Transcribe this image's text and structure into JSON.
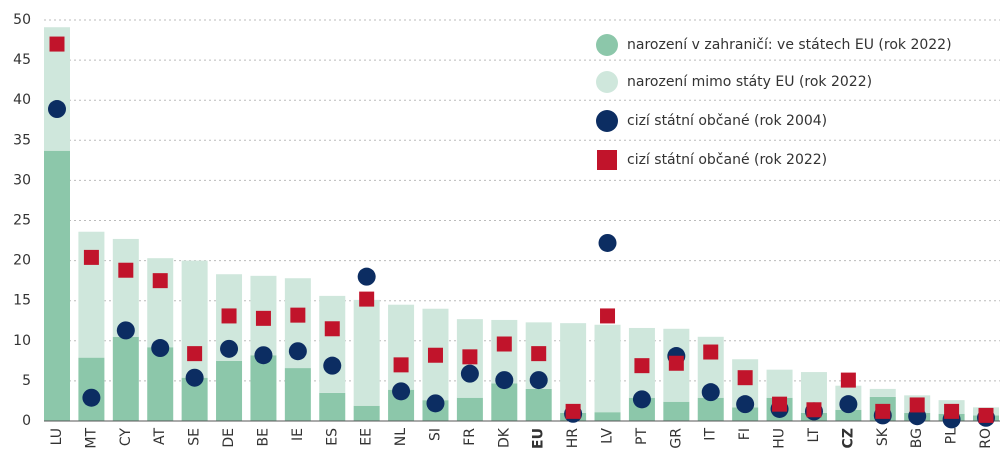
{
  "chart_data": {
    "type": "bar",
    "stacked": true,
    "categories": [
      "LU",
      "MT",
      "CY",
      "AT",
      "SE",
      "DE",
      "BE",
      "IE",
      "ES",
      "EE",
      "NL",
      "SI",
      "FR",
      "DK",
      "EU",
      "HR",
      "LV",
      "PT",
      "GR",
      "IT",
      "FI",
      "HU",
      "LT",
      "CZ",
      "SK",
      "BG",
      "PL",
      "RO"
    ],
    "highlight_indices": [
      14,
      23
    ],
    "series": [
      {
        "name": "narození v zahraničí: ve státech EU (rok 2022)",
        "kind": "bar",
        "color": "#8cc7aa",
        "values": [
          33.7,
          7.9,
          10.5,
          9.2,
          5.4,
          7.5,
          8.2,
          6.6,
          3.5,
          1.9,
          3.9,
          2.6,
          2.9,
          4.7,
          4.0,
          1.0,
          1.1,
          2.9,
          2.4,
          2.9,
          1.7,
          2.9,
          1.0,
          1.4,
          3.0,
          1.0,
          0.9,
          0.7
        ]
      },
      {
        "name": "narození mimo státy EU (rok 2022)",
        "kind": "bar",
        "color": "#cfe7dc",
        "values": [
          15.4,
          15.7,
          12.2,
          11.1,
          14.6,
          10.8,
          9.9,
          11.2,
          12.1,
          13.2,
          10.6,
          11.4,
          9.8,
          7.9,
          8.3,
          11.2,
          10.9,
          8.7,
          9.1,
          7.6,
          6.0,
          3.5,
          5.1,
          3.0,
          1.0,
          2.2,
          1.7,
          1.0
        ]
      },
      {
        "name": "cizí státní občané (rok 2004)",
        "kind": "circle",
        "color": "#0c2d62",
        "values": [
          38.9,
          2.9,
          11.3,
          9.1,
          5.4,
          9.0,
          8.2,
          8.7,
          6.9,
          18.0,
          3.7,
          2.2,
          5.9,
          5.1,
          5.1,
          0.9,
          22.2,
          2.7,
          8.1,
          3.6,
          2.1,
          1.5,
          1.2,
          2.1,
          0.7,
          0.6,
          0.2,
          0.4
        ]
      },
      {
        "name": "cizí státní občané (rok 2022)",
        "kind": "square",
        "color": "#c1142b",
        "values": [
          47.0,
          20.4,
          18.8,
          17.5,
          8.4,
          13.1,
          12.8,
          13.2,
          11.5,
          15.2,
          7.0,
          8.2,
          8.0,
          9.6,
          8.4,
          1.2,
          13.1,
          6.9,
          7.2,
          8.6,
          5.4,
          2.1,
          1.4,
          5.1,
          1.2,
          2.0,
          1.2,
          0.7
        ]
      }
    ],
    "ylim": [
      0,
      50
    ],
    "yticks": [
      0,
      5,
      10,
      15,
      20,
      25,
      30,
      35,
      40,
      45,
      50
    ],
    "grid": true
  }
}
